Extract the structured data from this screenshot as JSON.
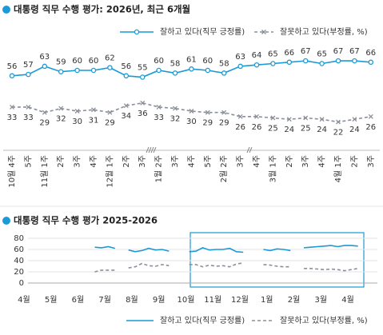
{
  "chart_data": [
    {
      "type": "line",
      "title": "대통령 직무 수행 평가: 2026년, 최근 6개월",
      "categories": [
        "10월 4주",
        "5주",
        "11월 1주",
        "2주",
        "3주",
        "4주",
        "12월 1주",
        "2주",
        "3주",
        "1월 2주",
        "3주",
        "4주",
        "5주",
        "2월 2주",
        "3주",
        "4주",
        "3월 1주",
        "2주",
        "3주",
        "4주",
        "4월 1주",
        "2주",
        "3주"
      ],
      "series": [
        {
          "name": "잘하고 있다(직무 긍정률)",
          "color": "#1a9ad6",
          "style": "solid",
          "marker": "o",
          "values": [
            56,
            57,
            63,
            59,
            60,
            60,
            62,
            56,
            55,
            60,
            58,
            61,
            60,
            58,
            63,
            64,
            65,
            66,
            67,
            65,
            67,
            67,
            66
          ]
        },
        {
          "name": "잘못하고 있다(부정률, %)",
          "color": "#8a8f99",
          "style": "dashed",
          "marker": "x",
          "values": [
            33,
            33,
            29,
            32,
            30,
            31,
            29,
            34,
            36,
            33,
            32,
            30,
            29,
            29,
            26,
            26,
            25,
            24,
            25,
            24,
            22,
            24,
            26
          ]
        }
      ],
      "ylim": [
        20,
        70
      ],
      "data_labels": true
    },
    {
      "type": "line",
      "title": "대통령 직무 수행 평가 2025-2026",
      "categories": [
        null,
        "4월",
        null,
        null,
        null,
        "5월",
        null,
        null,
        null,
        "6월",
        null,
        null,
        null,
        "7월",
        null,
        null,
        null,
        "8월",
        null,
        null,
        null,
        "9월",
        null,
        null,
        null,
        "10월",
        null,
        null,
        null,
        "11월",
        null,
        null,
        null,
        "12월",
        null,
        null,
        null,
        "1월",
        null,
        null,
        null,
        "2월",
        null,
        null,
        null,
        "3월",
        null,
        null,
        null,
        "4월",
        null,
        null
      ],
      "series": [
        {
          "name": "잘하고 있다(직무 긍정률)",
          "color": "#1a9ad6",
          "style": "solid",
          "values": [
            null,
            null,
            null,
            null,
            null,
            null,
            null,
            null,
            null,
            null,
            null,
            null,
            64,
            63,
            65,
            62,
            null,
            59,
            56,
            58,
            62,
            59,
            60,
            57,
            null,
            null,
            56,
            57,
            63,
            59,
            60,
            60,
            62,
            56,
            55,
            null,
            null,
            60,
            58,
            61,
            60,
            58,
            null,
            63,
            64,
            65,
            66,
            67,
            65,
            67,
            67,
            66
          ]
        },
        {
          "name": "잘못하고 있다(부정률, %)",
          "color": "#8a8f99",
          "style": "dashed",
          "values": [
            null,
            null,
            null,
            null,
            null,
            null,
            null,
            null,
            null,
            null,
            null,
            null,
            20,
            23,
            23,
            23,
            null,
            27,
            29,
            35,
            31,
            30,
            33,
            31,
            null,
            null,
            33,
            33,
            29,
            32,
            30,
            31,
            29,
            34,
            36,
            null,
            null,
            33,
            32,
            30,
            29,
            29,
            null,
            26,
            26,
            25,
            24,
            25,
            24,
            22,
            24,
            26
          ]
        }
      ],
      "ylim": [
        0,
        80
      ],
      "yticks": [
        0,
        20,
        40,
        60,
        80
      ],
      "grid": true
    }
  ]
}
